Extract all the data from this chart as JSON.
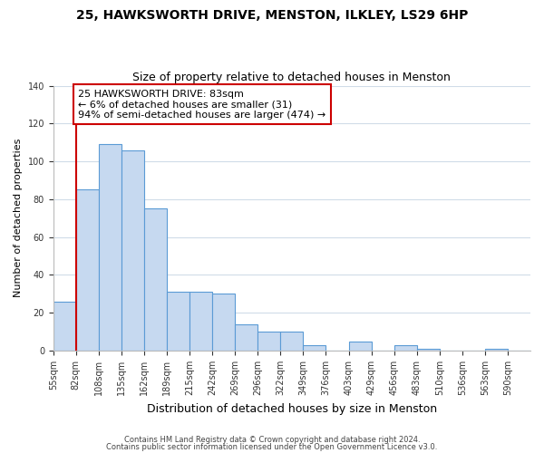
{
  "title1": "25, HAWKSWORTH DRIVE, MENSTON, ILKLEY, LS29 6HP",
  "title2": "Size of property relative to detached houses in Menston",
  "xlabel": "Distribution of detached houses by size in Menston",
  "ylabel": "Number of detached properties",
  "bin_labels": [
    "55sqm",
    "82sqm",
    "108sqm",
    "135sqm",
    "162sqm",
    "189sqm",
    "215sqm",
    "242sqm",
    "269sqm",
    "296sqm",
    "322sqm",
    "349sqm",
    "376sqm",
    "403sqm",
    "429sqm",
    "456sqm",
    "483sqm",
    "510sqm",
    "536sqm",
    "563sqm",
    "590sqm"
  ],
  "bar_heights": [
    26,
    85,
    109,
    106,
    75,
    31,
    31,
    30,
    14,
    10,
    10,
    3,
    0,
    5,
    0,
    3,
    1,
    0,
    0,
    1,
    0
  ],
  "bar_color": "#c6d9f0",
  "bar_edge_color": "#5b9bd5",
  "vline_x": 1,
  "vline_color": "#cc0000",
  "annotation_line1": "25 HAWKSWORTH DRIVE: 83sqm",
  "annotation_line2": "← 6% of detached houses are smaller (31)",
  "annotation_line3": "94% of semi-detached houses are larger (474) →",
  "annotation_box_color": "#ffffff",
  "annotation_box_edge": "#cc0000",
  "ylim": [
    0,
    140
  ],
  "yticks": [
    0,
    20,
    40,
    60,
    80,
    100,
    120,
    140
  ],
  "footer1": "Contains HM Land Registry data © Crown copyright and database right 2024.",
  "footer2": "Contains public sector information licensed under the Open Government Licence v3.0.",
  "background_color": "#ffffff",
  "grid_color": "#d0dce8"
}
